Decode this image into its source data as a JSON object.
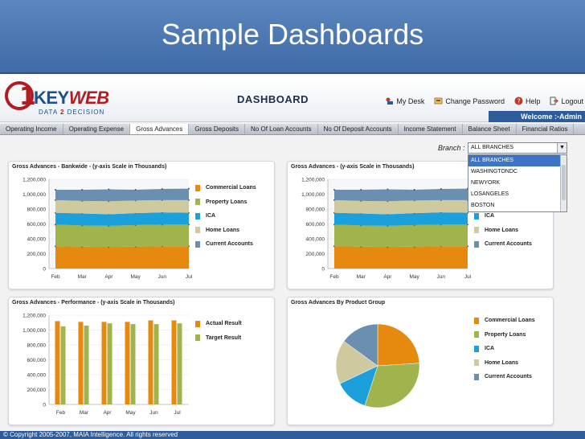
{
  "slide": {
    "title": "Sample Dashboards"
  },
  "app": {
    "logo": {
      "num": "1",
      "key": "KEY",
      "web": "WEB",
      "tag_a": "DATA ",
      "tag_b": "2",
      "tag_c": " DECISION"
    },
    "title": "DASHBOARD",
    "links": {
      "my_desk": "My Desk",
      "change_password": "Change Password",
      "help": "Help",
      "logout": "Logout"
    },
    "welcome": "Welcome :-Admin",
    "tabs": [
      {
        "label": "Operating Income"
      },
      {
        "label": "Operating Expense"
      },
      {
        "label": "Gross Advances",
        "active": true
      },
      {
        "label": "Gross Deposits"
      },
      {
        "label": "No Of Loan Accounts"
      },
      {
        "label": "No Of Deposit Accounts"
      },
      {
        "label": "Income Statement"
      },
      {
        "label": "Balance Sheet"
      },
      {
        "label": "Financial Ratios"
      }
    ],
    "branch": {
      "label": "Branch :",
      "selected": "ALL BRANCHES",
      "options": [
        "ALL BRANCHES",
        "WASHINGTONDC",
        "NEWYORK",
        "LOSANGELES",
        "BOSTON"
      ]
    },
    "footer": "© Copyright 2005-2007, MAIA Intelligence. All rights reserved"
  },
  "colors": {
    "commercial": "#e58a0f",
    "property": "#9fb44c",
    "ica": "#1ba0dc",
    "home": "#cfc9a0",
    "current": "#6b8fb0"
  },
  "chart_data": [
    {
      "type": "area",
      "title": "Gross Advances - Bankwide - (y-axis Scale in Thousands)",
      "categories": [
        "Feb",
        "Mar",
        "Apr",
        "May",
        "Jun",
        "Jul"
      ],
      "ylim": [
        0,
        1200000
      ],
      "yticks": [
        "1,200,000",
        "1,000,000",
        "800,000",
        "600,000",
        "400,000",
        "200,000",
        "0"
      ],
      "stacked": true,
      "series": [
        {
          "name": "Commercial Loans",
          "values": [
            300000,
            295000,
            290000,
            295000,
            300000,
            300000
          ]
        },
        {
          "name": "Property Loans",
          "values": [
            290000,
            285000,
            285000,
            290000,
            290000,
            290000
          ]
        },
        {
          "name": "ICA",
          "values": [
            160000,
            160000,
            155000,
            160000,
            165000,
            160000
          ]
        },
        {
          "name": "Home Loans",
          "values": [
            170000,
            170000,
            175000,
            170000,
            165000,
            170000
          ]
        },
        {
          "name": "Current Accounts",
          "values": [
            140000,
            150000,
            160000,
            145000,
            150000,
            155000
          ]
        }
      ]
    },
    {
      "type": "area",
      "title": "Gross Advances - (y-axis Scale in Thousands)",
      "categories": [
        "Feb",
        "Mar",
        "Apr",
        "May",
        "Jun",
        "Jul"
      ],
      "ylim": [
        0,
        1200000
      ],
      "yticks": [
        "1,200,000",
        "1,000,000",
        "800,000",
        "600,000",
        "400,000",
        "200,000",
        "0"
      ],
      "stacked": true,
      "series": [
        {
          "name": "Commercial Loans",
          "values": [
            300000,
            295000,
            290000,
            295000,
            300000,
            300000
          ]
        },
        {
          "name": "Property Loans",
          "values": [
            290000,
            285000,
            285000,
            290000,
            290000,
            290000
          ]
        },
        {
          "name": "ICA",
          "values": [
            160000,
            160000,
            155000,
            160000,
            165000,
            160000
          ]
        },
        {
          "name": "Home Loans",
          "values": [
            170000,
            170000,
            175000,
            170000,
            165000,
            170000
          ]
        },
        {
          "name": "Current Accounts",
          "values": [
            140000,
            150000,
            160000,
            145000,
            150000,
            155000
          ]
        }
      ]
    },
    {
      "type": "bar",
      "title": "Gross Advances - Performance - (y-axis Scale in Thousands)",
      "categories": [
        "Feb",
        "Mar",
        "Apr",
        "May",
        "Jun",
        "Jul"
      ],
      "ylim": [
        0,
        1200000
      ],
      "yticks": [
        "1,200,000",
        "1,000,000",
        "800,000",
        "600,000",
        "400,000",
        "200,000",
        "0"
      ],
      "series": [
        {
          "name": "Actual Result",
          "values": [
            1120000,
            1110000,
            1110000,
            1110000,
            1130000,
            1130000
          ]
        },
        {
          "name": "Target Result",
          "values": [
            1050000,
            1060000,
            1090000,
            1080000,
            1080000,
            1090000
          ]
        }
      ]
    },
    {
      "type": "pie",
      "title": "Gross Advances By Product Group",
      "series": [
        {
          "name": "Commercial Loans",
          "value": 24
        },
        {
          "name": "Property Loans",
          "value": 31
        },
        {
          "name": "ICA",
          "value": 13
        },
        {
          "name": "Home Loans",
          "value": 17
        },
        {
          "name": "Current Accounts",
          "value": 15
        }
      ]
    }
  ]
}
